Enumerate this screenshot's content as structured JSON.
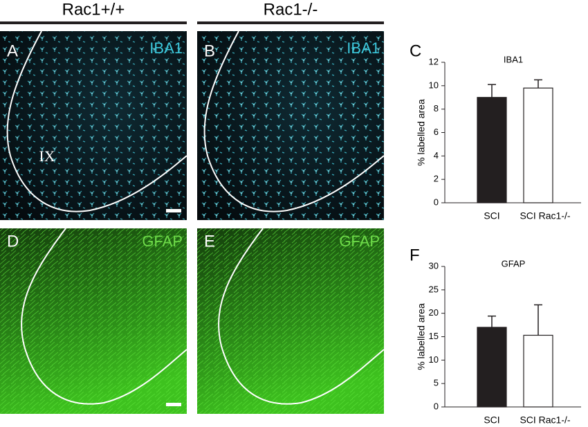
{
  "figure": {
    "column_headers": [
      "Rac1+/+",
      "Rac1-/-"
    ],
    "panels": [
      {
        "letter": "A",
        "stain": "IBA1"
      },
      {
        "letter": "B",
        "stain": "IBA1"
      },
      {
        "letter": "D",
        "stain": "GFAP"
      },
      {
        "letter": "E",
        "stain": "GFAP"
      }
    ],
    "region_label": "IX"
  },
  "chart_data": [
    {
      "type": "bar",
      "panel": "C",
      "title": "IBA1",
      "y_label": "% labelled area",
      "categories": [
        "SCI",
        "SCI Rac1-/-"
      ],
      "values": [
        9.0,
        9.8
      ],
      "errors": [
        1.1,
        0.7
      ],
      "colors": [
        "#231f20",
        "#ffffff"
      ],
      "ylim": [
        0,
        12
      ],
      "yticks": [
        0,
        2,
        4,
        6,
        8,
        10,
        12
      ],
      "grid": false
    },
    {
      "type": "bar",
      "panel": "F",
      "title": "GFAP",
      "y_label": "% labelled area",
      "categories": [
        "SCI",
        "SCI Rac1-/-"
      ],
      "values": [
        17,
        15.3
      ],
      "errors": [
        2.4,
        6.5
      ],
      "colors": [
        "#231f20",
        "#ffffff"
      ],
      "ylim": [
        0,
        30
      ],
      "yticks": [
        0,
        5,
        10,
        15,
        20,
        25,
        30
      ],
      "grid": false
    }
  ]
}
